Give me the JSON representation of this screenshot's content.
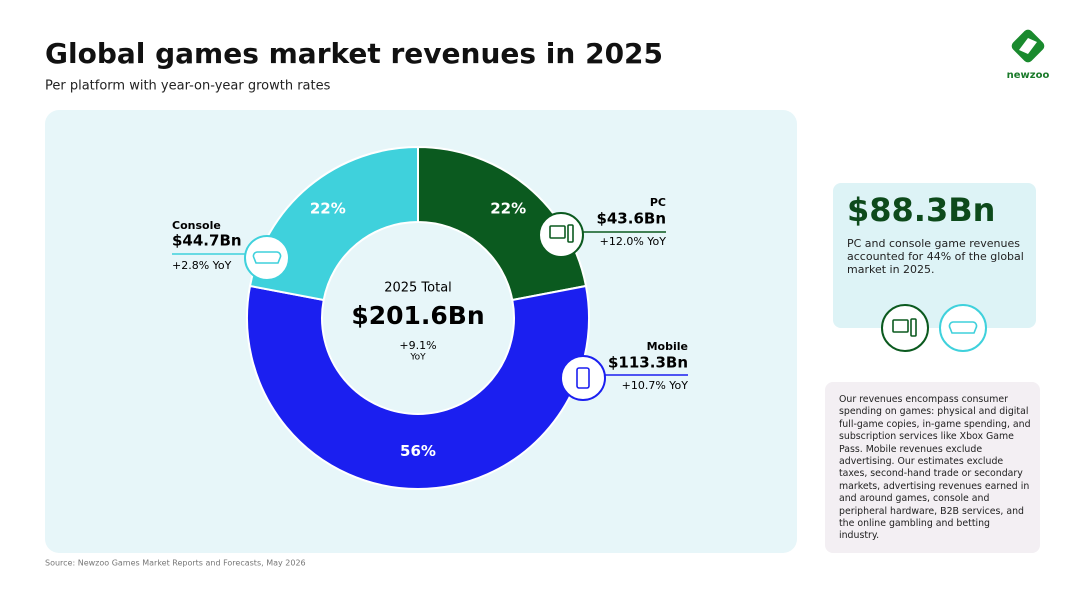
{
  "header": {
    "title": "Global games market revenues in 2025",
    "subtitle": "Per platform with year-on-year growth rates",
    "logo": "newzoo"
  },
  "chart_data": {
    "type": "donut",
    "categories": [
      "PC",
      "Mobile",
      "Console"
    ],
    "values": [
      22,
      56,
      22
    ],
    "value_labels": [
      "22%",
      "56%",
      "22%"
    ],
    "colors": [
      "#0b5a1f",
      "#1b1ff0",
      "#3fd1dc"
    ],
    "revenue_labels": [
      "$43.6Bn",
      "$113.3Bn",
      "$44.7Bn"
    ],
    "growth_labels": [
      "+12.0% YoY",
      "+10.7% YoY",
      "+2.8% YoY"
    ],
    "center": {
      "label": "2025 Total",
      "total": "$201.6Bn",
      "growth": "+9.1%",
      "growth_unit": "YoY"
    }
  },
  "highlight": {
    "value": "$88.3Bn",
    "text": "PC and console game revenues accounted for 44% of the global market in 2025."
  },
  "note": "Our revenues encompass consumer spending on games: physical and digital full-game copies, in-game spending, and subscription services like Xbox Game Pass. Mobile revenues exclude advertising. Our estimates exclude taxes, second-hand trade or secondary markets, advertising revenues earned in and around games, console and peripheral hardware, B2B services, and the online gambling and betting industry.",
  "source": "Source: Newzoo Games Market Reports and Forecasts, May 2026"
}
